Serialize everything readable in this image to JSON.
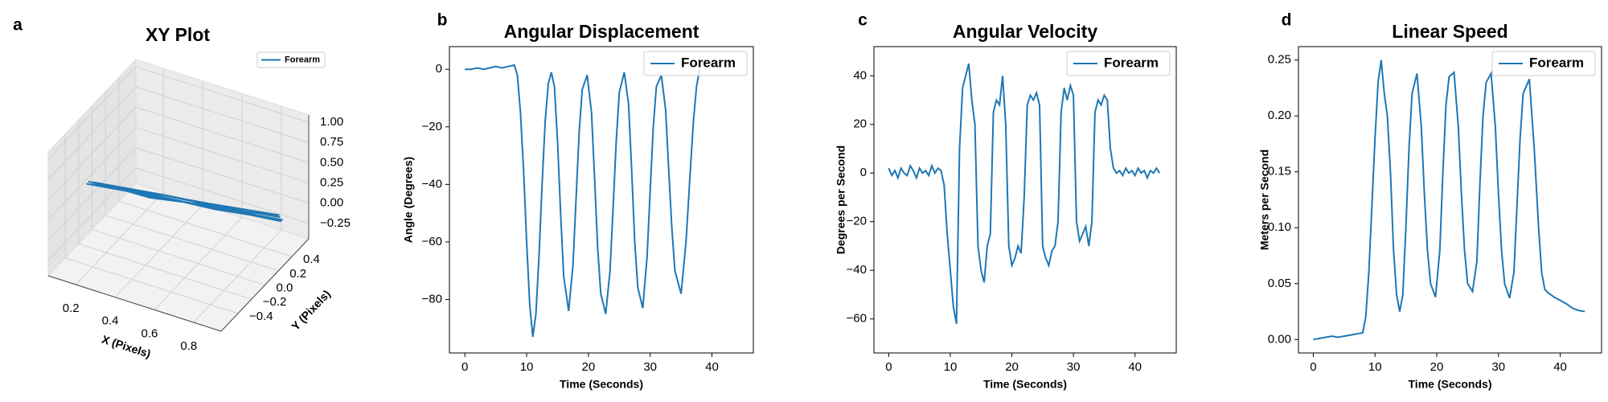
{
  "chart_data": [
    {
      "type": "line3d",
      "panel_label": "a",
      "title": "XY Plot",
      "xlabel": "X (Pixels)",
      "ylabel": "Y (Pixels)",
      "x": [
        0.0,
        0.3,
        0.6,
        0.9,
        0.6,
        0.3,
        0.02,
        0.3,
        0.6,
        0.88,
        0.6,
        0.3,
        0.05,
        0.35,
        0.65,
        0.9,
        0.6,
        0.3,
        0.0,
        0.3,
        0.6,
        0.87,
        0.55,
        0.25,
        0.02
      ],
      "series": [
        {
          "name": "Forearm",
          "color": "#1f77b4",
          "y": [
            0.12,
            0.18,
            0.28,
            0.38,
            0.26,
            0.2,
            0.1,
            0.22,
            0.3,
            0.4,
            0.3,
            0.16,
            0.14,
            0.24,
            0.32,
            0.36,
            0.28,
            0.19,
            0.09,
            0.2,
            0.27,
            0.42,
            0.3,
            0.2,
            0.13
          ],
          "z": [
            0,
            0,
            0,
            0,
            0,
            0,
            0,
            0,
            0,
            0,
            0,
            0,
            0,
            0,
            0,
            0,
            0,
            0,
            0,
            0,
            0,
            0,
            0,
            0,
            0
          ]
        }
      ],
      "xlim": [
        0.06,
        0.94
      ],
      "ylim": [
        -0.65,
        0.65
      ],
      "zlim": [
        -0.44,
        1.09
      ],
      "xticks": [
        0.2,
        0.4,
        0.6,
        0.8
      ],
      "yticks": [
        {
          "value": -0.4,
          "label": "−0.4"
        },
        {
          "value": -0.2,
          "label": "−0.2"
        },
        {
          "value": 0,
          "label": "0.0"
        },
        0.2,
        0.4
      ],
      "zticks": [
        {
          "value": -0.25,
          "label": "−0.25"
        },
        {
          "value": 0,
          "label": "0.00"
        },
        0.25,
        {
          "value": 0.5,
          "label": "0.50"
        },
        0.75,
        {
          "value": 1,
          "label": "1.00"
        }
      ],
      "legend": "upper right"
    },
    {
      "type": "line",
      "panel_label": "b",
      "title": "Angular Displacement",
      "xlabel": "Time (Seconds)",
      "ylabel": "Angle (Degrees)",
      "x": [
        0,
        1,
        2,
        3,
        4,
        5,
        6,
        7,
        8,
        8.5,
        9,
        9.5,
        10,
        10.5,
        11,
        11.5,
        12,
        12.5,
        13,
        13.5,
        14,
        14.5,
        15,
        15.5,
        16,
        16.8,
        17.5,
        18,
        18.5,
        19,
        19.8,
        20.5,
        21,
        21.5,
        22,
        22.8,
        23.5,
        24,
        24.5,
        25,
        25.8,
        26.5,
        27,
        27.5,
        28,
        28.8,
        29.5,
        30,
        30.5,
        31,
        31.8,
        32.5,
        33,
        33.5,
        34,
        35,
        35.8,
        36.5,
        37,
        37.5,
        38
      ],
      "series": [
        {
          "name": "Forearm",
          "color": "#1f77b4",
          "values": [
            0,
            0,
            0.5,
            0,
            0.5,
            1,
            0.5,
            1,
            1.5,
            -2,
            -15,
            -35,
            -60,
            -82,
            -93,
            -85,
            -65,
            -40,
            -18,
            -5,
            -1,
            -6,
            -25,
            -50,
            -72,
            -84,
            -68,
            -45,
            -22,
            -7,
            -2,
            -15,
            -38,
            -62,
            -78,
            -85,
            -70,
            -48,
            -25,
            -8,
            -1,
            -12,
            -35,
            -60,
            -76,
            -83,
            -65,
            -42,
            -20,
            -6,
            -2,
            -14,
            -35,
            -55,
            -70,
            -78,
            -60,
            -35,
            -18,
            -6,
            0
          ]
        }
      ],
      "xlim": [
        -2.5,
        46.7
      ],
      "ylim": [
        -98.6,
        7.9
      ],
      "xticks": [
        0,
        10,
        20,
        30,
        40
      ],
      "yticks": [
        {
          "value": -80,
          "label": "−80"
        },
        {
          "value": -60,
          "label": "−60"
        },
        {
          "value": -40,
          "label": "−40"
        },
        {
          "value": -20,
          "label": "−20"
        },
        0
      ],
      "legend": "upper right"
    },
    {
      "type": "line",
      "panel_label": "c",
      "title": "Angular Velocity",
      "xlabel": "Time (Seconds)",
      "ylabel": "Degrees per Second",
      "x": [
        0,
        0.5,
        1,
        1.5,
        2,
        2.5,
        3,
        3.5,
        4,
        4.5,
        5,
        5.5,
        6,
        6.5,
        7,
        7.5,
        8,
        8.5,
        9,
        9.5,
        10,
        10.5,
        11,
        11.5,
        12,
        12.5,
        13,
        13.5,
        14,
        14.5,
        15,
        15.5,
        16,
        16.5,
        17,
        17.5,
        18,
        18.5,
        19,
        19.5,
        20,
        20.5,
        21,
        21.5,
        22,
        22.5,
        23,
        23.5,
        24,
        24.5,
        25,
        25.5,
        26,
        26.5,
        27,
        27.5,
        28,
        28.5,
        29,
        29.5,
        30,
        30.5,
        31,
        31.5,
        32,
        32.5,
        33,
        33.5,
        34,
        34.5,
        35,
        35.5,
        36,
        36.5,
        37,
        37.5,
        38,
        38.5,
        39,
        39.5,
        40,
        40.5,
        41,
        41.5,
        42,
        42.5,
        43,
        43.5,
        44
      ],
      "series": [
        {
          "name": "Forearm",
          "color": "#1f77b4",
          "values": [
            2,
            -1,
            1,
            -2,
            2,
            0,
            -1,
            3,
            1,
            -2,
            2,
            0,
            1,
            -1,
            3,
            0,
            2,
            1,
            -5,
            -25,
            -40,
            -55,
            -62,
            10,
            35,
            40,
            45,
            30,
            20,
            -30,
            -40,
            -45,
            -30,
            -25,
            25,
            30,
            28,
            40,
            20,
            -30,
            -38,
            -35,
            -30,
            -33,
            -10,
            28,
            32,
            30,
            33,
            28,
            -30,
            -35,
            -38,
            -32,
            -30,
            -20,
            25,
            35,
            30,
            36,
            32,
            -20,
            -28,
            -25,
            -22,
            -30,
            -20,
            25,
            30,
            28,
            32,
            30,
            10,
            2,
            0,
            1,
            -1,
            2,
            0,
            1,
            -1,
            2,
            0,
            1,
            -2,
            1,
            0,
            2,
            0
          ]
        }
      ],
      "xlim": [
        -2.4,
        46.7
      ],
      "ylim": [
        -74,
        52
      ],
      "xticks": [
        0,
        10,
        20,
        30,
        40
      ],
      "yticks": [
        {
          "value": -60,
          "label": "−60"
        },
        {
          "value": -40,
          "label": "−40"
        },
        {
          "value": -20,
          "label": "−20"
        },
        0,
        20,
        40
      ],
      "legend": "upper right"
    },
    {
      "type": "line",
      "panel_label": "d",
      "title": "Linear Speed",
      "xlabel": "Time (Seconds)",
      "ylabel": "Meters per Second",
      "x": [
        0,
        1,
        2,
        3,
        4,
        5,
        6,
        7,
        8,
        8.5,
        9,
        9.5,
        10,
        10.5,
        11,
        11.5,
        12,
        12.5,
        13,
        13.5,
        14,
        14.5,
        15,
        15.5,
        16,
        16.8,
        17.5,
        18,
        18.5,
        19,
        19.8,
        20.5,
        21,
        21.5,
        22,
        22.8,
        23.5,
        24,
        24.5,
        25,
        25.8,
        26.5,
        27,
        27.5,
        28,
        28.8,
        29.5,
        30,
        30.5,
        31,
        31.8,
        32.5,
        33,
        33.5,
        34,
        35,
        35.8,
        36.5,
        37,
        37.5,
        38,
        39,
        40,
        41,
        42,
        43,
        44
      ],
      "series": [
        {
          "name": "Forearm",
          "color": "#1f77b4",
          "values": [
            0,
            0.001,
            0.002,
            0.003,
            0.002,
            0.003,
            0.004,
            0.005,
            0.006,
            0.02,
            0.06,
            0.12,
            0.18,
            0.23,
            0.25,
            0.22,
            0.2,
            0.15,
            0.08,
            0.04,
            0.025,
            0.04,
            0.1,
            0.17,
            0.22,
            0.238,
            0.19,
            0.13,
            0.08,
            0.05,
            0.038,
            0.08,
            0.15,
            0.21,
            0.235,
            0.239,
            0.19,
            0.13,
            0.08,
            0.05,
            0.043,
            0.07,
            0.14,
            0.2,
            0.23,
            0.238,
            0.19,
            0.13,
            0.08,
            0.05,
            0.037,
            0.06,
            0.12,
            0.18,
            0.22,
            0.233,
            0.17,
            0.1,
            0.06,
            0.045,
            0.042,
            0.038,
            0.035,
            0.032,
            0.028,
            0.026,
            0.025
          ]
        }
      ],
      "xlim": [
        -2.4,
        46.7
      ],
      "ylim": [
        -0.012,
        0.262
      ],
      "xticks": [
        0,
        10,
        20,
        30,
        40
      ],
      "yticks": [
        {
          "value": 0,
          "label": "0.00"
        },
        0.05,
        {
          "value": 0.1,
          "label": "0.10"
        },
        0.15,
        {
          "value": 0.2,
          "label": "0.20"
        },
        0.25
      ],
      "legend": "upper right"
    }
  ]
}
